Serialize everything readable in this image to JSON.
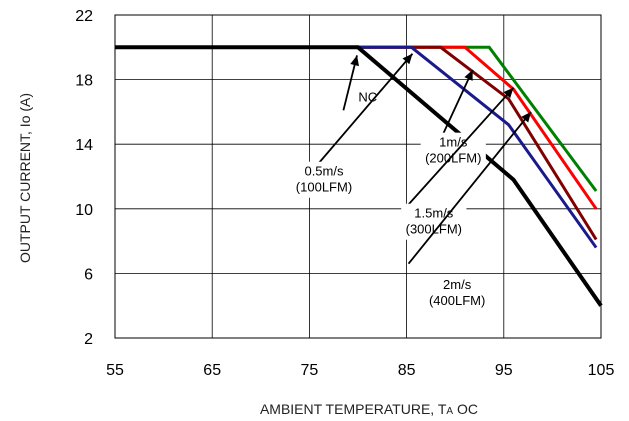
{
  "chart_data": {
    "type": "line",
    "xlabel": "AMBIENT TEMPERATURE, T",
    "xlabel_subscript": "A",
    "xlabel_unit": "OC",
    "ylabel": "OUTPUT CURRENT, Io  (A)",
    "xlim": [
      55,
      105
    ],
    "ylim": [
      2,
      22
    ],
    "xticks": [
      55,
      65,
      75,
      85,
      95,
      105
    ],
    "yticks": [
      2,
      6,
      10,
      14,
      18,
      22
    ],
    "grid": true,
    "series": [
      {
        "name": "NC",
        "color": "#000000",
        "x": [
          55,
          80,
          96,
          105
        ],
        "y": [
          20,
          20,
          11.8,
          4
        ]
      },
      {
        "name": "0.5m/s (100LFM)",
        "color": "#1a1a8c",
        "x": [
          55,
          85.5,
          95.5,
          104.5
        ],
        "y": [
          20,
          20,
          15.2,
          7.6
        ]
      },
      {
        "name": "1m/s (200LFM)",
        "color": "#800000",
        "x": [
          55,
          88.5,
          95.5,
          104.5
        ],
        "y": [
          20,
          20,
          16.8,
          8.1
        ]
      },
      {
        "name": "1.5m/s (300LFM)",
        "color": "#ff0000",
        "x": [
          55,
          91,
          96,
          104.5
        ],
        "y": [
          20,
          20,
          17.4,
          10
        ]
      },
      {
        "name": "2m/s (400LFM)",
        "color": "#008000",
        "x": [
          55,
          93.5,
          104.5
        ],
        "y": [
          20,
          20,
          11.1
        ]
      }
    ],
    "annotations": [
      {
        "lines": [
          "NC"
        ],
        "text_at": [
          81,
          16.9
        ],
        "arrow_from": [
          78.5,
          16.1
        ],
        "arrow_to": [
          79.9,
          19.5
        ]
      },
      {
        "lines": [
          "0.5m/s",
          "(100LFM)"
        ],
        "text_at": [
          76.5,
          11.8
        ],
        "arrow_from": [
          74.5,
          11.8
        ],
        "arrow_to": [
          85.6,
          19.6
        ]
      },
      {
        "lines": [
          "1m/s",
          "(200LFM)"
        ],
        "text_at": [
          89.8,
          13.6
        ],
        "arrow_from": [
          88.5,
          14.3
        ],
        "arrow_to": [
          91.8,
          18.6
        ]
      },
      {
        "lines": [
          "1.5m/s",
          "(300LFM)"
        ],
        "text_at": [
          87.8,
          9.2
        ],
        "arrow_from": [
          84.5,
          9.8
        ],
        "arrow_to": [
          96,
          17.5
        ]
      },
      {
        "lines": [
          "2m/s",
          "(400LFM)"
        ],
        "text_at": [
          90.2,
          4.8
        ],
        "arrow_from": [
          85.2,
          6.6
        ],
        "arrow_to": [
          97.8,
          16
        ]
      }
    ]
  }
}
